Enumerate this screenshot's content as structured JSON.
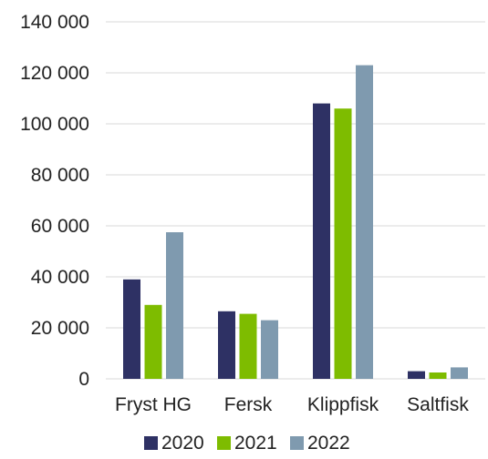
{
  "chart_data": {
    "type": "bar",
    "categories": [
      "Fryst HG",
      "Fersk",
      "Klippfisk",
      "Saltfisk"
    ],
    "series": [
      {
        "name": "2020",
        "color": "#2e3164",
        "values": [
          39000,
          26500,
          108000,
          3000
        ]
      },
      {
        "name": "2021",
        "color": "#7ebc00",
        "values": [
          29000,
          25500,
          106000,
          2500
        ]
      },
      {
        "name": "2022",
        "color": "#7f9aaf",
        "values": [
          57500,
          23000,
          123000,
          4500
        ]
      }
    ],
    "y_ticks": [
      "0",
      "20 000",
      "40 000",
      "60 000",
      "80 000",
      "100 000",
      "120 000",
      "140 000"
    ],
    "ylim": [
      0,
      140000
    ],
    "grid": true,
    "gridline_color": "#d9d9d9",
    "legend_position": "bottom"
  }
}
